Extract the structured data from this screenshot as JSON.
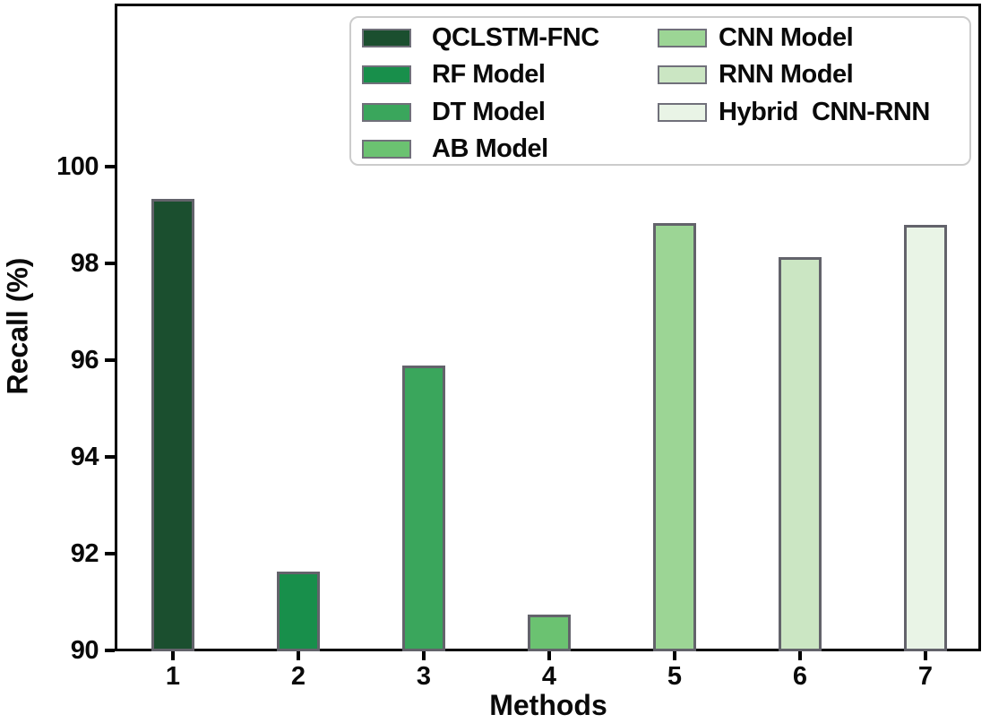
{
  "chart_data": {
    "type": "bar",
    "title": "",
    "xlabel": "Methods",
    "ylabel": "Recall (%)",
    "categories": [
      "1",
      "2",
      "3",
      "4",
      "5",
      "6",
      "7"
    ],
    "series_labels": [
      "QCLSTM-FNC",
      "RF Model",
      "DT Model",
      "AB Model",
      "CNN Model",
      "RNN Model",
      "Hybrid  CNN-RNN"
    ],
    "values": [
      99.3,
      91.6,
      95.85,
      90.7,
      98.8,
      98.1,
      98.75
    ],
    "colors": [
      "#1b4f2f",
      "#188f4b",
      "#3aa65c",
      "#6bc271",
      "#9cd595",
      "#cbe6c3",
      "#e9f4e6"
    ],
    "bar_edge_color": "#63636b",
    "axis_color": "#000000",
    "ylim": [
      90,
      103.4
    ],
    "yticks": [
      90,
      92,
      94,
      96,
      98,
      100
    ],
    "ytick_labels": [
      "90",
      "92",
      "94",
      "96",
      "98",
      "100"
    ],
    "grid": false,
    "legend": {
      "position": "upper-right-inside",
      "columns": 2,
      "column1_indices": [
        0,
        1,
        2,
        3
      ],
      "column2_indices": [
        4,
        5,
        6
      ]
    }
  }
}
